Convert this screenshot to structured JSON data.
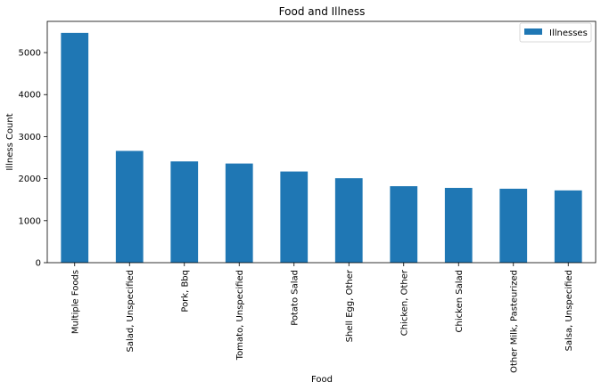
{
  "chart_data": {
    "type": "bar",
    "title": "Food and Illness",
    "xlabel": "Food",
    "ylabel": "Illness Count",
    "categories": [
      "Multiple Foods",
      "Salad, Unspecified",
      "Pork, Bbq",
      "Tomato, Unspecified",
      "Potato Salad",
      "Shell Egg, Other",
      "Chicken, Other",
      "Chicken Salad",
      "Other Milk, Pasteurized",
      "Salsa, Unspecified"
    ],
    "series": [
      {
        "name": "Illnesses",
        "color": "#1f77b4",
        "values": [
          5470,
          2660,
          2410,
          2360,
          2170,
          2010,
          1820,
          1780,
          1760,
          1720
        ]
      }
    ],
    "ylim": [
      0,
      5743
    ],
    "yticks": [
      0,
      1000,
      2000,
      3000,
      4000,
      5000
    ],
    "grid": false,
    "legend_position": "top-right"
  }
}
